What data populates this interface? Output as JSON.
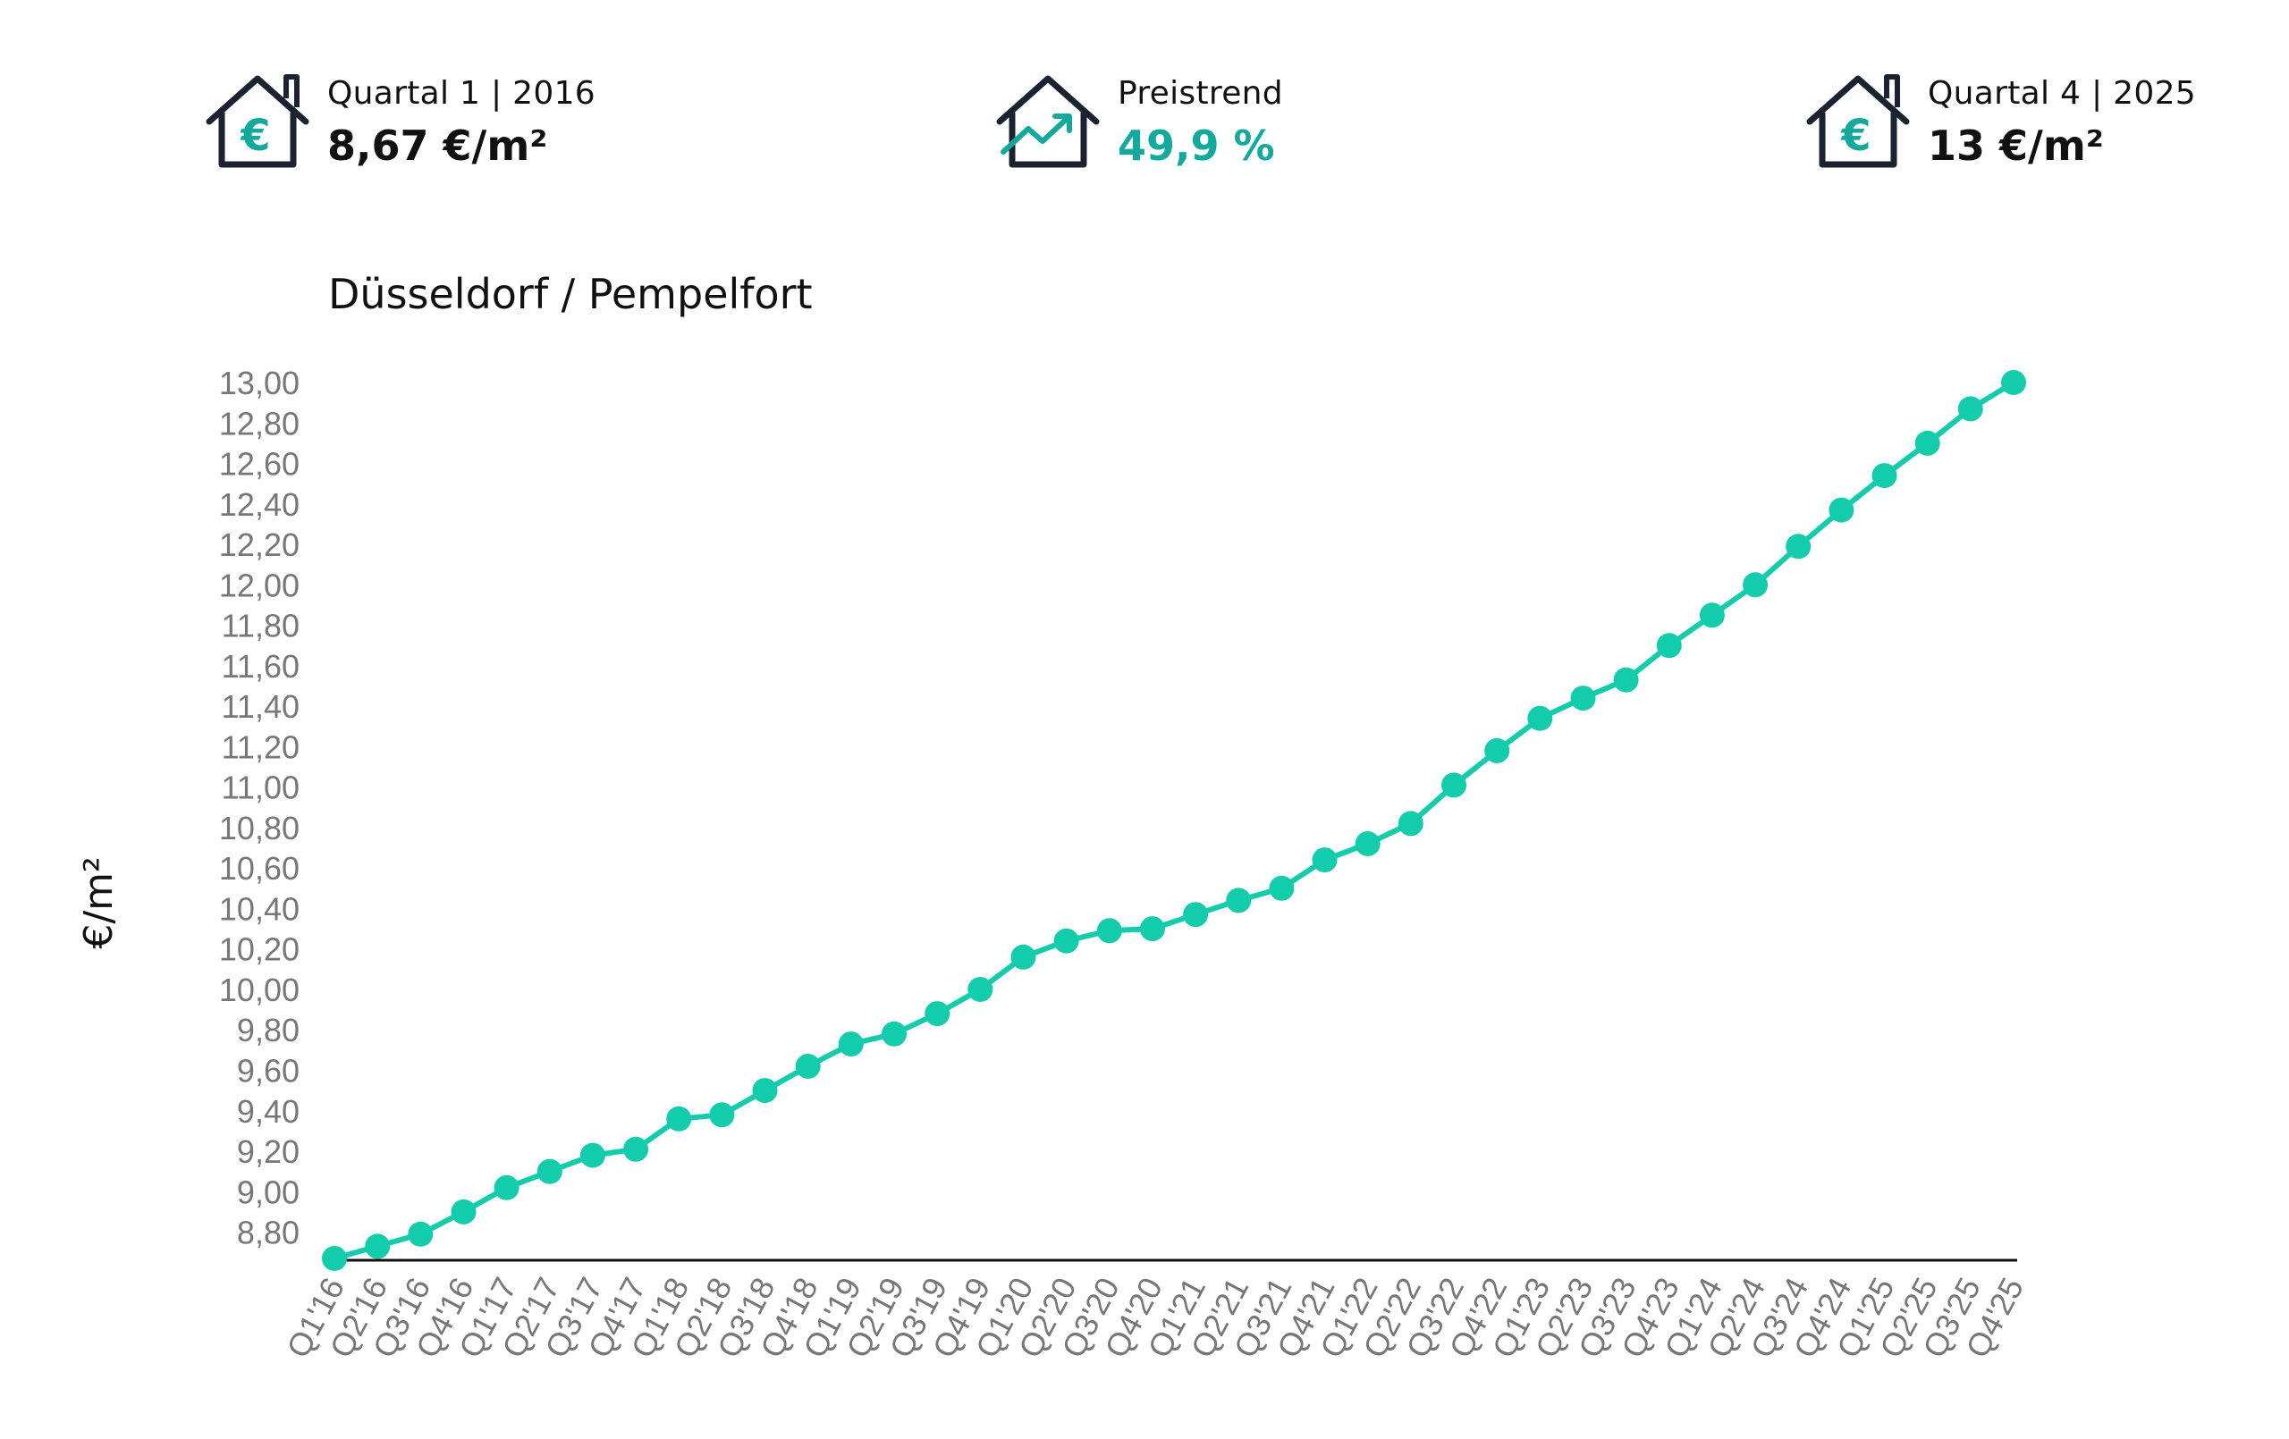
{
  "kpis": {
    "start": {
      "label": "Quartal 1 | 2016",
      "value": "8,67 €/m²",
      "icon": "house-euro-icon"
    },
    "trend": {
      "label": "Preistrend",
      "value": "49,9 %",
      "icon": "house-trend-icon"
    },
    "end": {
      "label": "Quartal 4 | 2025",
      "value": "13 €/m²",
      "icon": "house-euro-icon"
    }
  },
  "colors": {
    "accent": "#13ccac",
    "accent_text": "#13a99d",
    "icon_dark": "#1b2330",
    "axis_text": "#777777"
  },
  "chart_data": {
    "type": "line",
    "title": "Düsseldorf / Pempelfort",
    "xlabel": "",
    "ylabel": "€/m²",
    "ylim": [
      8.67,
      13.0
    ],
    "y_ticks": [
      "8,80",
      "9,00",
      "9,20",
      "9,40",
      "9,60",
      "9,80",
      "10,00",
      "10,20",
      "10,40",
      "10,60",
      "10,80",
      "11,00",
      "11,20",
      "11,40",
      "11,60",
      "11,80",
      "12,00",
      "12,20",
      "12,40",
      "12,60",
      "12,80",
      "13,00"
    ],
    "grid": false,
    "categories": [
      "Q1'16",
      "Q2'16",
      "Q3'16",
      "Q4'16",
      "Q1'17",
      "Q2'17",
      "Q3'17",
      "Q4'17",
      "Q1'18",
      "Q2'18",
      "Q3'18",
      "Q4'18",
      "Q1'19",
      "Q2'19",
      "Q3'19",
      "Q4'19",
      "Q1'20",
      "Q2'20",
      "Q3'20",
      "Q4'20",
      "Q1'21",
      "Q2'21",
      "Q3'21",
      "Q4'21",
      "Q1'22",
      "Q2'22",
      "Q3'22",
      "Q4'22",
      "Q1'23",
      "Q2'23",
      "Q3'23",
      "Q4'23",
      "Q1'24",
      "Q2'24",
      "Q3'24",
      "Q4'24",
      "Q1'25",
      "Q2'25",
      "Q3'25",
      "Q4'25"
    ],
    "series": [
      {
        "values": [
          8.67,
          8.73,
          8.79,
          8.9,
          9.02,
          9.1,
          9.18,
          9.21,
          9.36,
          9.38,
          9.5,
          9.62,
          9.73,
          9.78,
          9.88,
          10.0,
          10.16,
          10.24,
          10.29,
          10.3,
          10.37,
          10.44,
          10.5,
          10.64,
          10.72,
          10.82,
          11.01,
          11.18,
          11.34,
          11.44,
          11.53,
          11.7,
          11.85,
          12.0,
          12.19,
          12.37,
          12.54,
          12.7,
          12.87,
          13.0
        ]
      }
    ]
  }
}
